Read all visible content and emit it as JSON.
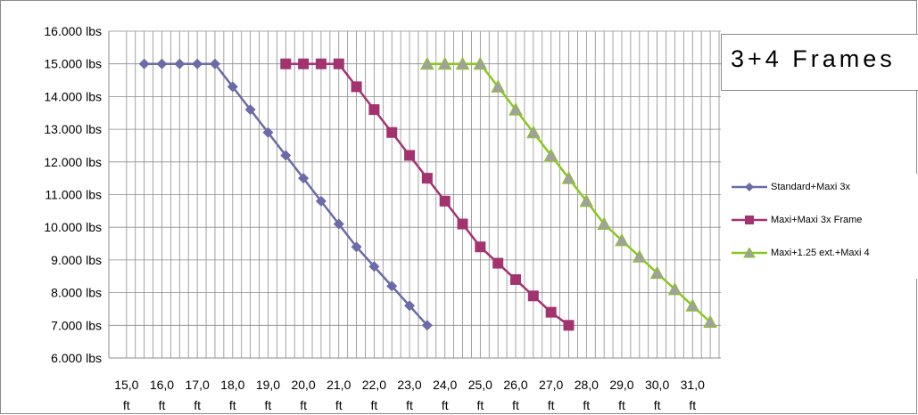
{
  "chart_data": {
    "type": "line",
    "title": "3+4 Frames",
    "xlabel": "",
    "ylabel": "",
    "ylim": [
      6000,
      16000
    ],
    "xlim": [
      14.5,
      31.8
    ],
    "x_tick_labels": [
      "15,0 ft",
      "16,0 ft",
      "17,0 ft",
      "18,0 ft",
      "19,0 ft",
      "20,0 ft",
      "21,0 ft",
      "22,0 ft",
      "23,0 ft",
      "24,0 ft",
      "25,0 ft",
      "26,0 ft",
      "27,0 ft",
      "28,0 ft",
      "29,0 ft",
      "30,0 ft",
      "31,0 ft"
    ],
    "x_ticks": [
      15,
      16,
      17,
      18,
      19,
      20,
      21,
      22,
      23,
      24,
      25,
      26,
      27,
      28,
      29,
      30,
      31
    ],
    "y_tick_labels": [
      "6.000 lbs",
      "7.000 lbs",
      "8.000 lbs",
      "9.000 lbs",
      "10.000 lbs",
      "11.000 lbs",
      "12.000 lbs",
      "13.000 lbs",
      "14.000 lbs",
      "15.000 lbs",
      "16.000 lbs"
    ],
    "y_ticks": [
      6000,
      7000,
      8000,
      9000,
      10000,
      11000,
      12000,
      13000,
      14000,
      15000,
      16000
    ],
    "grid": true,
    "legend_position": "right",
    "series": [
      {
        "name": "Standard+Maxi 3x",
        "color": "#6b6ba8",
        "marker": "diamond",
        "x": [
          15.5,
          16.0,
          16.5,
          17.0,
          17.5,
          18.0,
          18.5,
          19.0,
          19.5,
          20.0,
          20.5,
          21.0,
          21.5,
          22.0,
          22.5,
          23.0,
          23.5
        ],
        "y": [
          15000,
          15000,
          15000,
          15000,
          15000,
          14300,
          13600,
          12900,
          12200,
          11500,
          10800,
          10100,
          9400,
          8800,
          8200,
          7600,
          7000
        ]
      },
      {
        "name": "Maxi+Maxi 3x Frame",
        "color": "#a3336f",
        "marker": "square",
        "x": [
          19.5,
          20.0,
          20.5,
          21.0,
          21.5,
          22.0,
          22.5,
          23.0,
          23.5,
          24.0,
          24.5,
          25.0,
          25.5,
          26.0,
          26.5,
          27.0,
          27.5
        ],
        "y": [
          15000,
          15000,
          15000,
          15000,
          14300,
          13600,
          12900,
          12200,
          11500,
          10800,
          10100,
          9400,
          8900,
          8400,
          7900,
          7400,
          7000
        ]
      },
      {
        "name": "Maxi+1.25 ext.+Maxi 4",
        "color": "#8ac721",
        "marker": "triangle",
        "x": [
          23.5,
          24.0,
          24.5,
          25.0,
          25.5,
          26.0,
          26.5,
          27.0,
          27.5,
          28.0,
          28.5,
          29.0,
          29.5,
          30.0,
          30.5,
          31.0,
          31.5
        ],
        "y": [
          15000,
          15000,
          15000,
          15000,
          14300,
          13600,
          12900,
          12200,
          11500,
          10800,
          10100,
          9600,
          9100,
          8600,
          8100,
          7600,
          7100
        ]
      }
    ]
  }
}
